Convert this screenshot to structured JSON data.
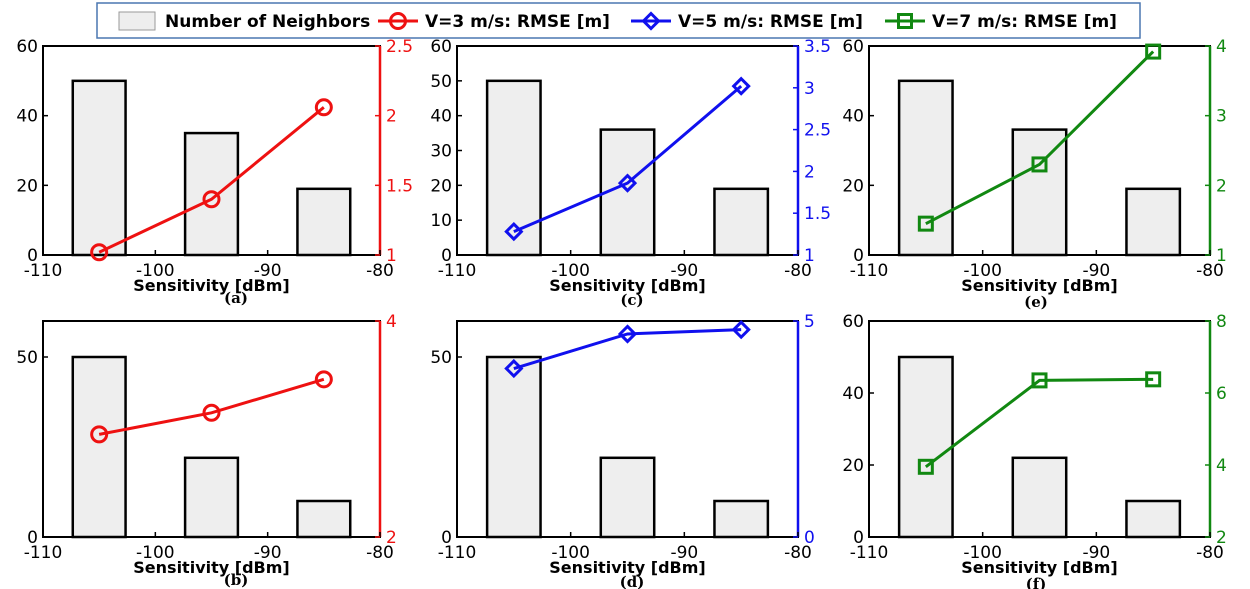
{
  "legend": {
    "bars_label": "Number of Neighbors",
    "series_labels": [
      "V=3 m/s: RMSE [m]",
      "V=5 m/s: RMSE [m]",
      "V=7 m/s: RMSE [m]"
    ],
    "series_colors": [
      "#ee1111",
      "#1010ee",
      "#118811"
    ],
    "series_markers": [
      "circle",
      "diamond",
      "square"
    ]
  },
  "chart_data": [
    {
      "type": "bar+line",
      "panel": "a",
      "caption": "(a)",
      "xlabel": "Sensitivity [dBm]",
      "xlim": [
        -110,
        -80
      ],
      "xticks": [
        -110,
        -100,
        -90,
        -80
      ],
      "ylim_left": [
        0,
        60
      ],
      "yticks_left": [
        0,
        20,
        40,
        60
      ],
      "ylim_right": [
        1,
        2.5
      ],
      "yticks_right": [
        "1",
        "1.5",
        "2",
        "2.5"
      ],
      "bars": {
        "name": "Number of Neighbors",
        "x": [
          -105,
          -95,
          -85
        ],
        "values": [
          50,
          35,
          19
        ]
      },
      "series": [
        {
          "name": "V=3 m/s: RMSE [m]",
          "color": "#ee1111",
          "marker": "circle",
          "x": [
            -105,
            -95,
            -85
          ],
          "values": [
            1.02,
            1.4,
            2.06
          ]
        }
      ]
    },
    {
      "type": "bar+line",
      "panel": "c",
      "caption": "(c)",
      "xlabel": "Sensitivity [dBm]",
      "xlim": [
        -110,
        -80
      ],
      "xticks": [
        -110,
        -100,
        -90,
        -80
      ],
      "ylim_left": [
        0,
        60
      ],
      "yticks_left": [
        0,
        10,
        20,
        30,
        40,
        50,
        60
      ],
      "ylim_right": [
        1,
        3.5
      ],
      "yticks_right": [
        "1",
        "1.5",
        "2",
        "2.5",
        "3",
        "3.5"
      ],
      "bars": {
        "name": "Number of Neighbors",
        "x": [
          -105,
          -95,
          -85
        ],
        "values": [
          50,
          36,
          19
        ]
      },
      "series": [
        {
          "name": "V=5 m/s: RMSE [m]",
          "color": "#1010ee",
          "marker": "diamond",
          "x": [
            -105,
            -95,
            -85
          ],
          "values": [
            1.28,
            1.86,
            3.02
          ]
        }
      ]
    },
    {
      "type": "bar+line",
      "panel": "e",
      "caption": "(e)",
      "xlabel": "Sensitivity [dBm]",
      "xlim": [
        -110,
        -80
      ],
      "xticks": [
        -110,
        -100,
        -90,
        -80
      ],
      "ylim_left": [
        0,
        60
      ],
      "yticks_left": [
        0,
        20,
        40,
        60
      ],
      "ylim_right": [
        1,
        4
      ],
      "yticks_right": [
        "1",
        "2",
        "3",
        "4"
      ],
      "bars": {
        "name": "Number of Neighbors",
        "x": [
          -105,
          -95,
          -85
        ],
        "values": [
          50,
          36,
          19
        ]
      },
      "series": [
        {
          "name": "V=7 m/s: RMSE [m]",
          "color": "#118811",
          "marker": "square",
          "x": [
            -105,
            -95,
            -85
          ],
          "values": [
            1.45,
            2.3,
            3.92
          ]
        }
      ]
    },
    {
      "type": "bar+line",
      "panel": "b",
      "caption": "(b)",
      "xlabel": "Sensitivity [dBm]",
      "xlim": [
        -110,
        -80
      ],
      "xticks": [
        -110,
        -100,
        -90,
        -80
      ],
      "ylim_left": [
        0,
        60
      ],
      "yticks_left": [
        0,
        50
      ],
      "ylim_right": [
        2,
        4
      ],
      "yticks_right": [
        "2",
        "4"
      ],
      "bars": {
        "name": "Number of Neighbors",
        "x": [
          -105,
          -95,
          -85
        ],
        "values": [
          50,
          22,
          10
        ]
      },
      "series": [
        {
          "name": "V=3 m/s: RMSE [m]",
          "color": "#ee1111",
          "marker": "circle",
          "x": [
            -105,
            -95,
            -85
          ],
          "values": [
            2.95,
            3.15,
            3.46
          ]
        }
      ]
    },
    {
      "type": "bar+line",
      "panel": "d",
      "caption": "(d)",
      "xlabel": "Sensitivity [dBm]",
      "xlim": [
        -110,
        -80
      ],
      "xticks": [
        -110,
        -100,
        -90,
        -80
      ],
      "ylim_left": [
        0,
        60
      ],
      "yticks_left": [
        0,
        50
      ],
      "ylim_right": [
        0,
        5
      ],
      "yticks_right": [
        "0",
        "5"
      ],
      "bars": {
        "name": "Number of Neighbors",
        "x": [
          -105,
          -95,
          -85
        ],
        "values": [
          50,
          22,
          10
        ]
      },
      "series": [
        {
          "name": "V=5 m/s: RMSE [m]",
          "color": "#1010ee",
          "marker": "diamond",
          "x": [
            -105,
            -95,
            -85
          ],
          "values": [
            3.9,
            4.7,
            4.8
          ]
        }
      ]
    },
    {
      "type": "bar+line",
      "panel": "f",
      "caption": "(f)",
      "xlabel": "Sensitivity [dBm]",
      "xlim": [
        -110,
        -80
      ],
      "xticks": [
        -110,
        -100,
        -90,
        -80
      ],
      "ylim_left": [
        0,
        60
      ],
      "yticks_left": [
        0,
        20,
        40,
        60
      ],
      "ylim_right": [
        2,
        8
      ],
      "yticks_right": [
        "2",
        "4",
        "6",
        "8"
      ],
      "bars": {
        "name": "Number of Neighbors",
        "x": [
          -105,
          -95,
          -85
        ],
        "values": [
          50,
          22,
          10
        ]
      },
      "series": [
        {
          "name": "V=7 m/s: RMSE [m]",
          "color": "#118811",
          "marker": "square",
          "x": [
            -105,
            -95,
            -85
          ],
          "values": [
            3.95,
            6.35,
            6.38
          ]
        }
      ]
    }
  ]
}
